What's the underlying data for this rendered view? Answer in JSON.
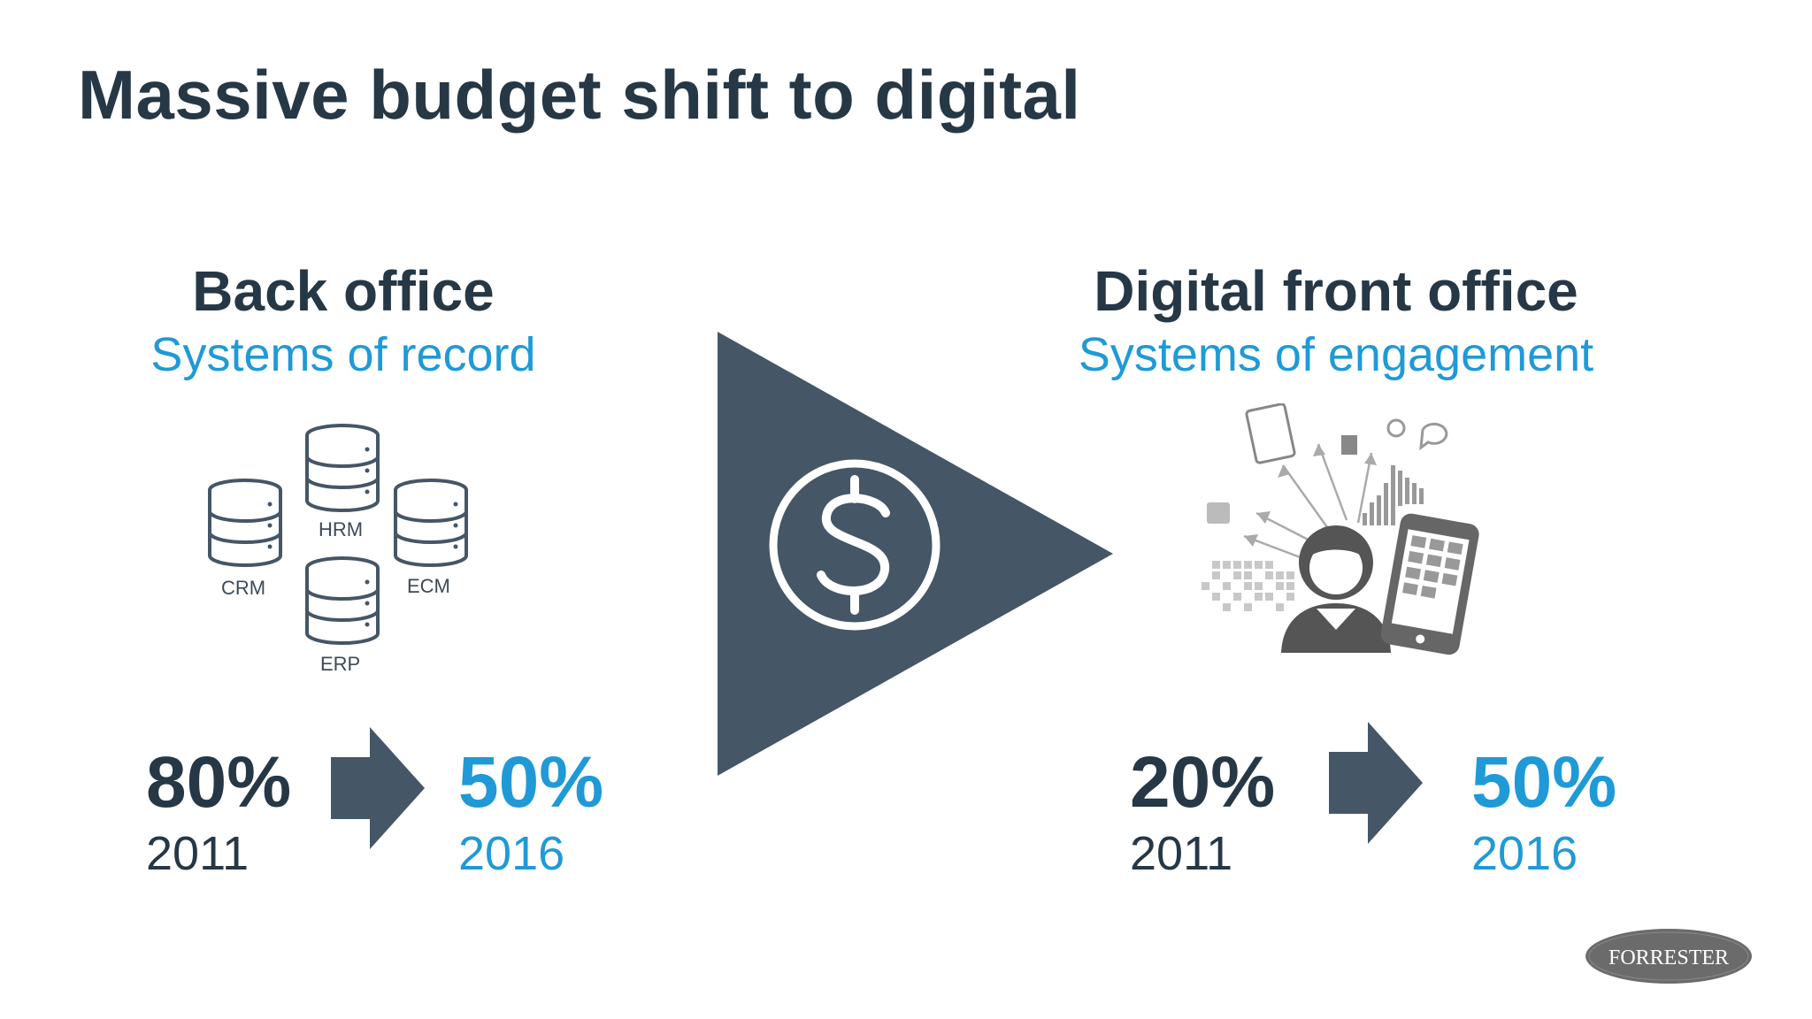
{
  "title": "Massive budget shift to digital",
  "back_office": {
    "heading": "Back office",
    "subheading": "Systems of record",
    "databases": [
      "HRM",
      "CRM",
      "ECM",
      "ERP"
    ],
    "from_value": "80%",
    "from_year": "2011",
    "to_value": "50%",
    "to_year": "2016"
  },
  "front_office": {
    "heading": "Digital front office",
    "subheading": "Systems of engagement",
    "from_value": "20%",
    "from_year": "2011",
    "to_value": "50%",
    "to_year": "2016"
  },
  "center": {
    "icon": "dollar-coin-icon"
  },
  "logo": {
    "text": "FORRESTER"
  },
  "colors": {
    "dark": "#263746",
    "accent": "#1f9ad6",
    "shape": "#455666"
  }
}
